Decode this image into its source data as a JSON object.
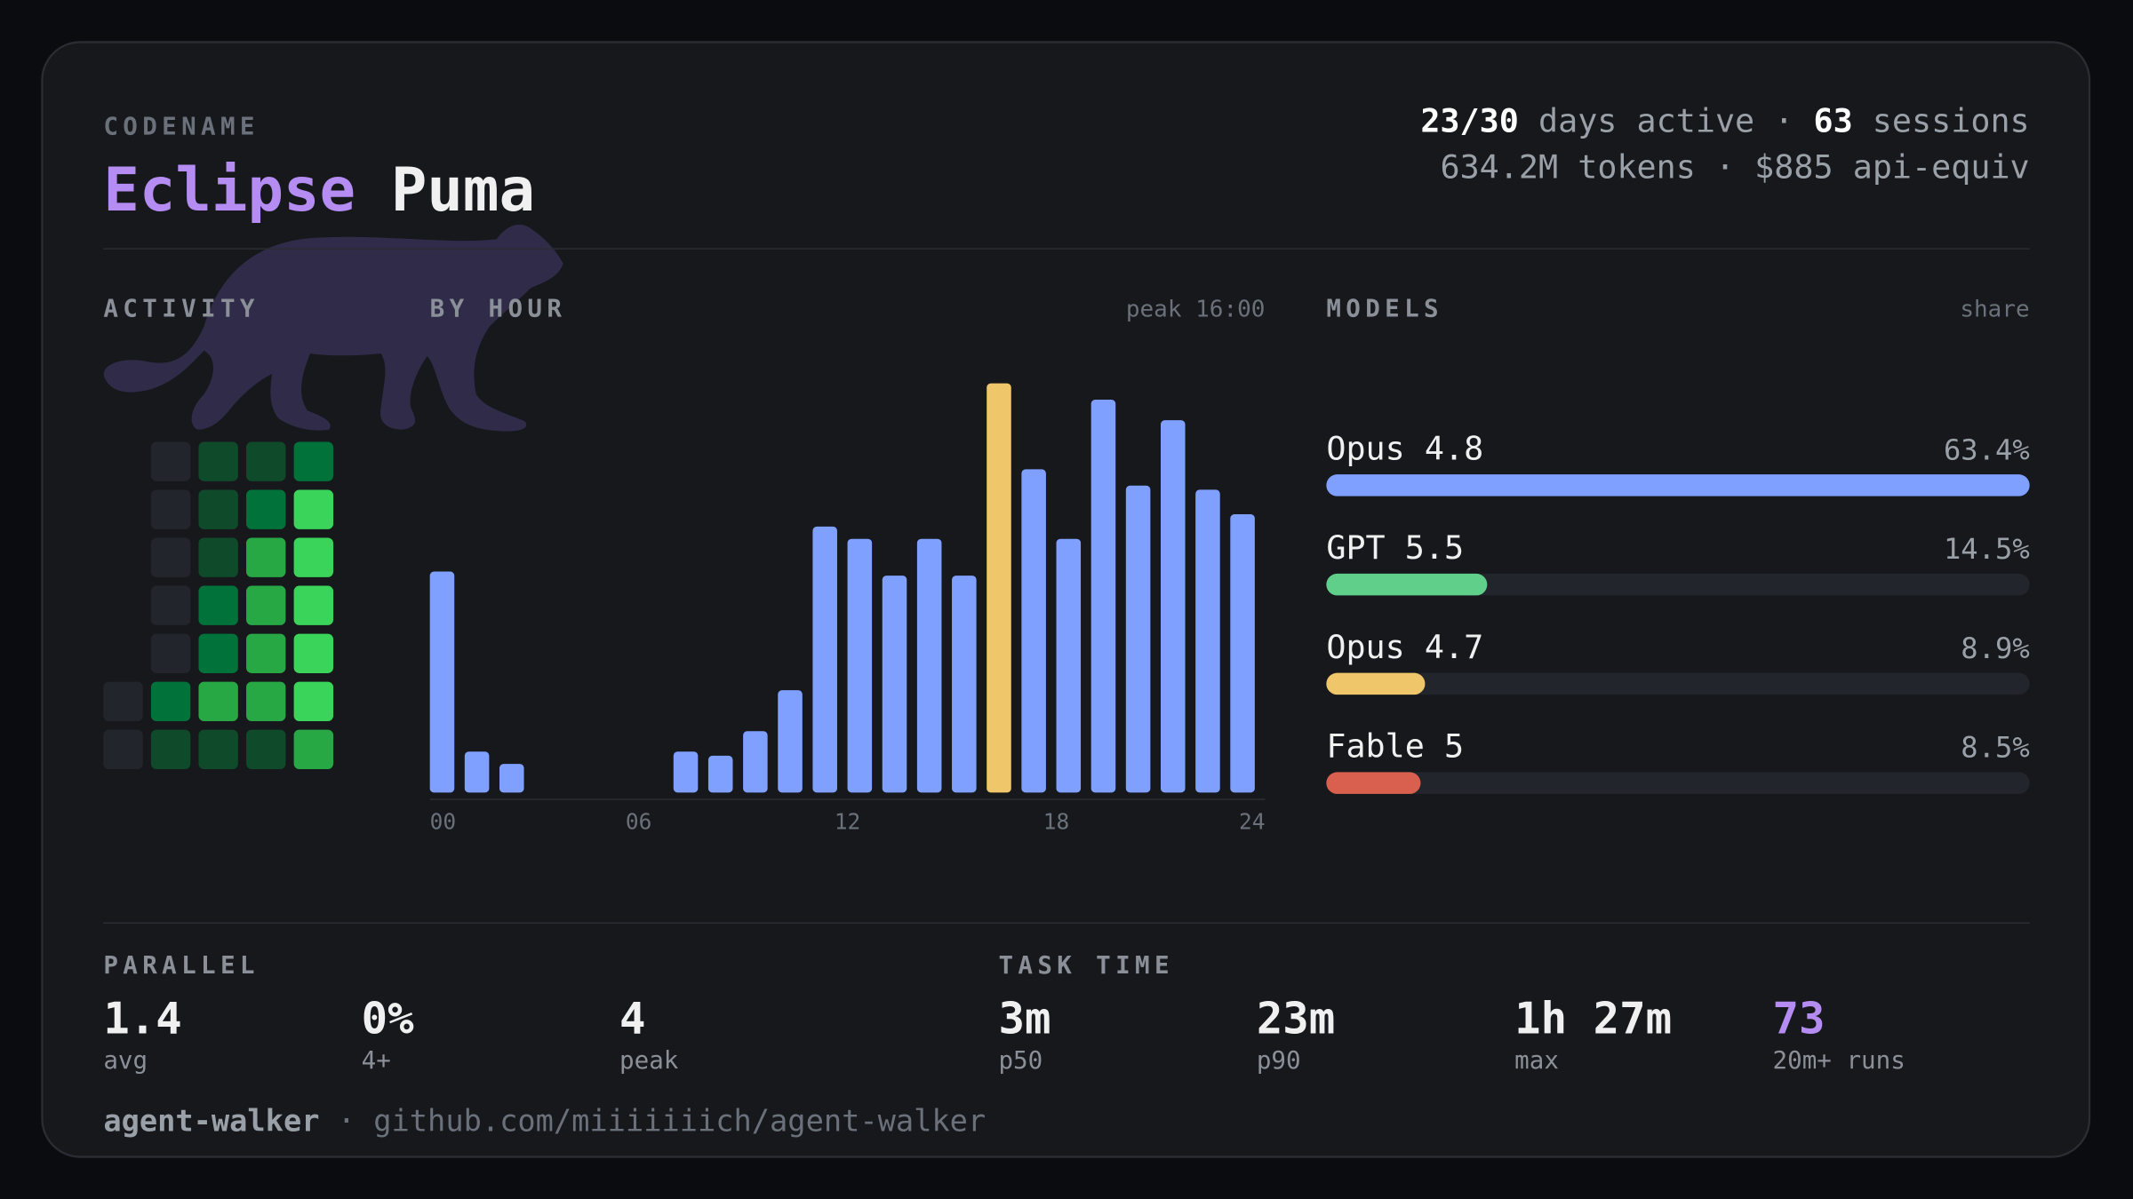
{
  "header": {
    "label": "CODENAME",
    "name_first": "Eclipse",
    "name_second": "Puma"
  },
  "stats": {
    "days": "23/30",
    "days_label": " days active ",
    "sep": "· ",
    "sessions": "63",
    "sessions_label": " sessions",
    "line2": "634.2M tokens · $885 api-equiv"
  },
  "activity": {
    "title": "ACTIVITY",
    "palette": [
      "#22262c",
      "#0f4a2b",
      "#00723a",
      "#28a845",
      "#3ad45a"
    ],
    "levels": [
      [
        null,
        0,
        1,
        1,
        2
      ],
      [
        null,
        0,
        1,
        2,
        4
      ],
      [
        null,
        0,
        1,
        3,
        4
      ],
      [
        null,
        0,
        2,
        3,
        4
      ],
      [
        null,
        0,
        2,
        3,
        4
      ],
      [
        0,
        2,
        3,
        3,
        4
      ],
      [
        0,
        1,
        1,
        1,
        3
      ]
    ]
  },
  "chart_data": {
    "type": "bar",
    "title": "BY HOUR",
    "annotation": "peak 16:00",
    "x": [
      0,
      1,
      2,
      3,
      4,
      5,
      6,
      7,
      8,
      9,
      10,
      11,
      12,
      13,
      14,
      15,
      16,
      17,
      18,
      19,
      20,
      21,
      22,
      23
    ],
    "values": [
      54,
      10,
      7,
      0,
      0,
      0,
      0,
      10,
      9,
      15,
      25,
      65,
      62,
      53,
      62,
      53,
      100,
      79,
      62,
      96,
      75,
      91,
      74,
      68
    ],
    "colors": [
      "#7fa0ff",
      "#7fa0ff",
      "#7fa0ff",
      "#7fa0ff",
      "#7fa0ff",
      "#7fa0ff",
      "#7fa0ff",
      "#7fa0ff",
      "#7fa0ff",
      "#7fa0ff",
      "#7fa0ff",
      "#7fa0ff",
      "#7fa0ff",
      "#7fa0ff",
      "#7fa0ff",
      "#7fa0ff",
      "#f0c66a",
      "#7fa0ff",
      "#7fa0ff",
      "#7fa0ff",
      "#7fa0ff",
      "#7fa0ff",
      "#7fa0ff",
      "#7fa0ff"
    ],
    "xlim": [
      0,
      24
    ],
    "ylim": [
      0,
      100
    ],
    "xticks": [
      {
        "value": 0,
        "label": "00"
      },
      {
        "value": 6,
        "label": "06"
      },
      12,
      18,
      24
    ]
  },
  "models": {
    "title": "MODELS",
    "annotation": "share",
    "items": [
      {
        "name": "Opus 4.8",
        "value": 63.4,
        "value_label": "63.4%",
        "color": "#7fa0ff"
      },
      {
        "name": "GPT 5.5",
        "value": 14.5,
        "value_label": "14.5%",
        "color": "#5fcf8a"
      },
      {
        "name": "Opus 4.7",
        "value": 8.9,
        "value_label": "8.9%",
        "color": "#f0c66a"
      },
      {
        "name": "Fable 5",
        "value": 8.5,
        "value_label": "8.5%",
        "color": "#d9604f"
      }
    ]
  },
  "parallel": {
    "title": "PARALLEL",
    "items": [
      {
        "value": "1.4",
        "label": "avg"
      },
      {
        "value": "0%",
        "label": "4+"
      },
      {
        "value": "4",
        "label": "peak"
      }
    ]
  },
  "task_time": {
    "title": "TASK TIME",
    "items": [
      {
        "value": "3m",
        "label": "p50"
      },
      {
        "value": "23m",
        "label": "p90"
      },
      {
        "value": "1h 27m",
        "label": "max"
      },
      {
        "value": "73",
        "label": "20m+ runs",
        "color": "#b48cf2"
      }
    ]
  },
  "footer": {
    "name": "agent-walker",
    "sep": " · ",
    "url": "github.com/miiiiiiich/agent-walker"
  }
}
